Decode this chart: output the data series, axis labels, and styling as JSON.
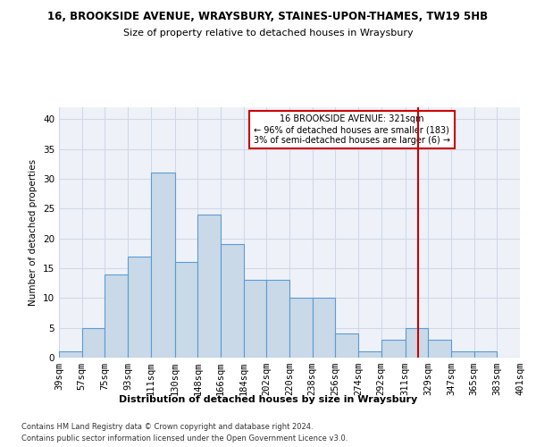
{
  "title1": "16, BROOKSIDE AVENUE, WRAYSBURY, STAINES-UPON-THAMES, TW19 5HB",
  "title2": "Size of property relative to detached houses in Wraysbury",
  "xlabel": "Distribution of detached houses by size in Wraysbury",
  "ylabel": "Number of detached properties",
  "footer1": "Contains HM Land Registry data © Crown copyright and database right 2024.",
  "footer2": "Contains public sector information licensed under the Open Government Licence v3.0.",
  "bin_labels": [
    "39sqm",
    "57sqm",
    "75sqm",
    "93sqm",
    "111sqm",
    "130sqm",
    "148sqm",
    "166sqm",
    "184sqm",
    "202sqm",
    "220sqm",
    "238sqm",
    "256sqm",
    "274sqm",
    "292sqm",
    "311sqm",
    "329sqm",
    "347sqm",
    "365sqm",
    "383sqm",
    "401sqm"
  ],
  "bar_heights": [
    1,
    5,
    14,
    17,
    31,
    16,
    24,
    19,
    13,
    13,
    10,
    10,
    4,
    1,
    3,
    5,
    3,
    1,
    1,
    0
  ],
  "bar_color": "#c9d9e8",
  "bar_edgecolor": "#5b9bd5",
  "grid_color": "#d0d8e8",
  "background_color": "#eef2f8",
  "redline_x": 321,
  "redline_color": "#cc0000",
  "annotation_text": "16 BROOKSIDE AVENUE: 321sqm\n← 96% of detached houses are smaller (183)\n3% of semi-detached houses are larger (6) →",
  "annotation_box_color": "#ffffff",
  "annotation_box_edgecolor": "#cc0000",
  "ylim": [
    0,
    42
  ],
  "yticks": [
    0,
    5,
    10,
    15,
    20,
    25,
    30,
    35,
    40
  ],
  "bin_edges": [
    39,
    57,
    75,
    93,
    111,
    130,
    148,
    166,
    184,
    202,
    220,
    238,
    256,
    274,
    292,
    311,
    329,
    347,
    365,
    383,
    401
  ]
}
